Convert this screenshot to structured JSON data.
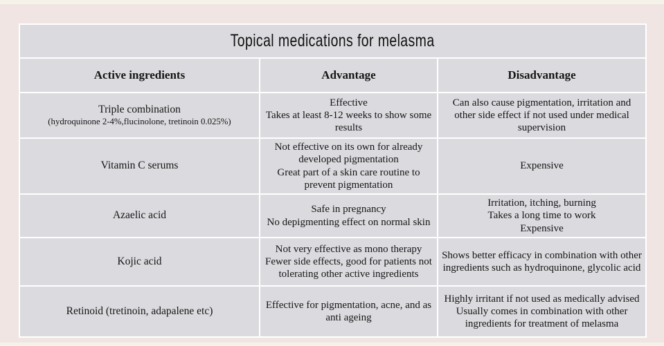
{
  "page": {
    "background_color": "#f0e5e3",
    "strip_color": "#f5f2e9",
    "cell_color": "#dbdade"
  },
  "table": {
    "title": "Topical medications for melasma",
    "columns": [
      "Active ingredients",
      "Advantage",
      "Disadvantage"
    ],
    "rows": [
      {
        "ingredient": "Triple combination",
        "ingredient_note": "(hydroquinone 2-4%,flucinolone, tretinoin 0.025%)",
        "advantage": [
          "Effective",
          "Takes at least 8-12 weeks to show some results"
        ],
        "disadvantage": [
          "Can also cause pigmentation, irritation and other side effect if not used under medical supervision"
        ]
      },
      {
        "ingredient": "Vitamin C serums",
        "ingredient_note": "",
        "advantage": [
          "Not effective on its own for already developed pigmentation",
          "Great part of a skin care routine to prevent pigmentation"
        ],
        "disadvantage": [
          "Expensive"
        ]
      },
      {
        "ingredient": "Azaelic acid",
        "ingredient_note": "",
        "advantage": [
          "Safe in pregnancy",
          "No depigmenting effect on normal skin"
        ],
        "disadvantage": [
          "Irritation, itching, burning",
          "Takes a long time to work",
          "Expensive"
        ]
      },
      {
        "ingredient": "Kojic acid",
        "ingredient_note": "",
        "advantage": [
          "Not very effective as mono therapy",
          "Fewer side effects, good for patients not tolerating other active ingredients"
        ],
        "disadvantage": [
          "Shows better efficacy in combination with other ingredients such as hydroquinone, glycolic acid"
        ]
      },
      {
        "ingredient": "Retinoid (tretinoin, adapalene etc)",
        "ingredient_note": "",
        "advantage": [
          "Effective for pigmentation, acne, and as anti ageing"
        ],
        "disadvantage": [
          "Highly irritant if not used as medically advised",
          "Usually comes in combination with other ingredients for treatment of melasma"
        ]
      }
    ]
  }
}
